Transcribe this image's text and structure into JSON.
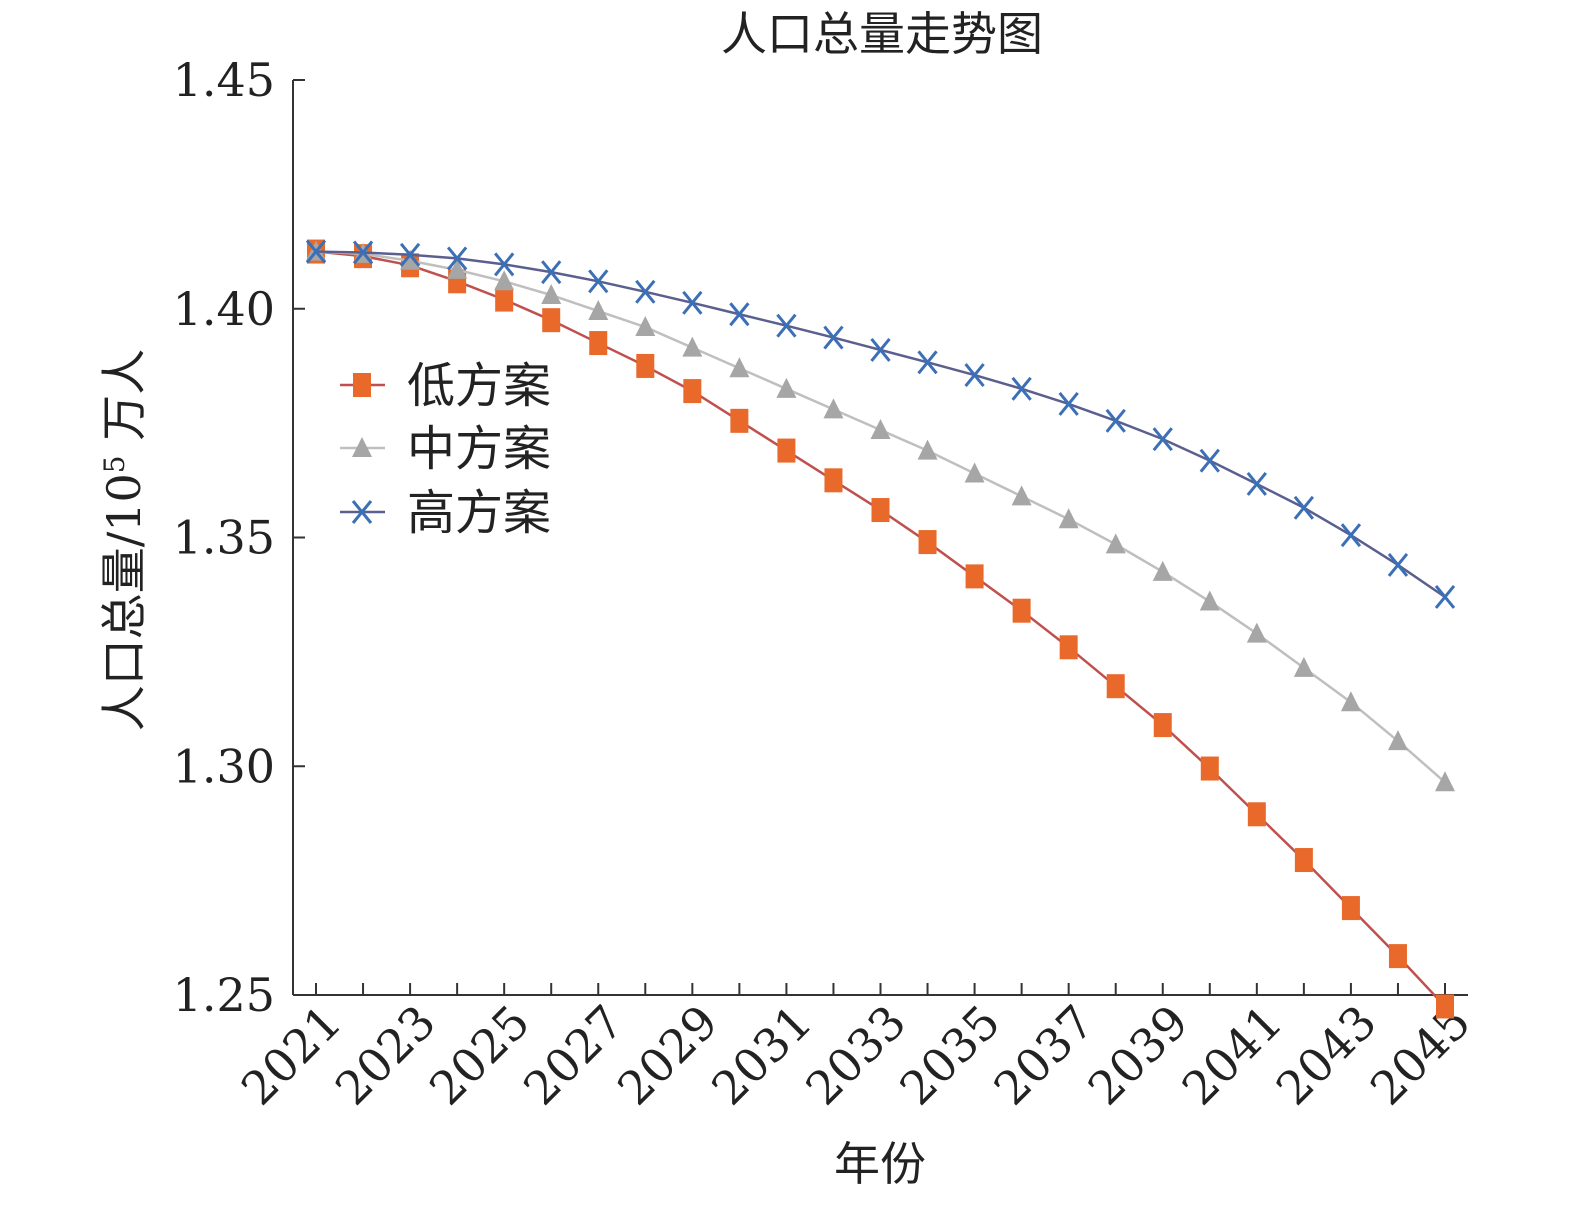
{
  "chart_data": {
    "type": "line",
    "title": "人口总量走势图",
    "xlabel": "年份",
    "ylabel": {
      "prefix": "人口总量/10",
      "superscript": "5",
      "suffix": " 万人"
    },
    "ylim": [
      1.25,
      1.45
    ],
    "yticks": [
      "1.25",
      "1.30",
      "1.35",
      "1.40",
      "1.45"
    ],
    "xlim": [
      2021,
      2045
    ],
    "xticks": [
      "2021",
      "2023",
      "2025",
      "2027",
      "2029",
      "2031",
      "2033",
      "2035",
      "2037",
      "2039",
      "2041",
      "2043",
      "2045"
    ],
    "x": [
      2021,
      2022,
      2023,
      2024,
      2025,
      2026,
      2027,
      2028,
      2029,
      2030,
      2031,
      2032,
      2033,
      2034,
      2035,
      2036,
      2037,
      2038,
      2039,
      2040,
      2041,
      2042,
      2043,
      2044,
      2045
    ],
    "legend_position": "upper-left",
    "grid": false,
    "series": [
      {
        "name": "低方案",
        "marker": "square",
        "marker_color": "#e8692a",
        "line_color": "#c0504d",
        "values": [
          1.4125,
          1.4115,
          1.4095,
          1.406,
          1.402,
          1.3975,
          1.3925,
          1.3875,
          1.382,
          1.3755,
          1.369,
          1.3625,
          1.356,
          1.349,
          1.3415,
          1.334,
          1.326,
          1.3175,
          1.309,
          1.2995,
          1.2895,
          1.2795,
          1.269,
          1.2585,
          1.2475
        ]
      },
      {
        "name": "中方案",
        "marker": "triangle",
        "marker_color": "#a6a6a6",
        "line_color": "#bfbfbf",
        "values": [
          1.4125,
          1.412,
          1.4105,
          1.4085,
          1.406,
          1.403,
          1.3995,
          1.396,
          1.3915,
          1.387,
          1.3825,
          1.378,
          1.3735,
          1.369,
          1.364,
          1.359,
          1.354,
          1.3485,
          1.3425,
          1.336,
          1.329,
          1.3215,
          1.314,
          1.3055,
          1.2965
        ]
      },
      {
        "name": "高方案",
        "marker": "x",
        "marker_color": "#3b6fb6",
        "line_color": "#5a5f8f",
        "values": [
          1.4125,
          1.4123,
          1.4118,
          1.411,
          1.4097,
          1.408,
          1.406,
          1.4037,
          1.4013,
          1.3988,
          1.3963,
          1.3937,
          1.391,
          1.3883,
          1.3855,
          1.3825,
          1.3792,
          1.3755,
          1.3715,
          1.3668,
          1.3617,
          1.3565,
          1.3505,
          1.344,
          1.337
        ]
      }
    ]
  }
}
